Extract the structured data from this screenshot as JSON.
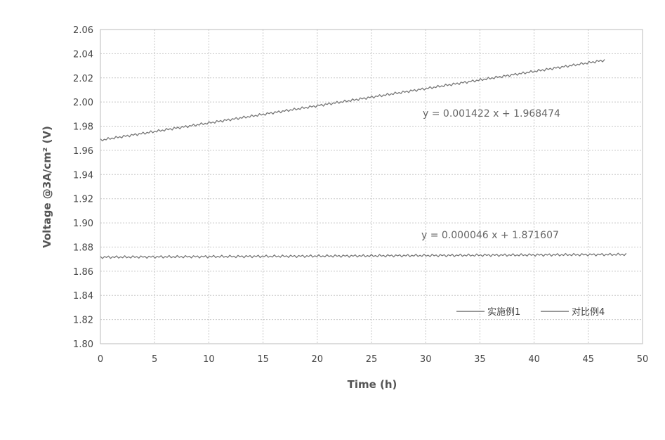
{
  "chart_data": {
    "type": "line",
    "xlabel": "Time (h)",
    "ylabel": "Voltage @3A/cm² (V)",
    "xlim": [
      0,
      50
    ],
    "ylim": [
      1.8,
      2.06
    ],
    "x_ticks": [
      0,
      5,
      10,
      15,
      20,
      25,
      30,
      35,
      40,
      45,
      50
    ],
    "y_ticks": [
      1.8,
      1.82,
      1.84,
      1.86,
      1.88,
      1.9,
      1.92,
      1.94,
      1.96,
      1.98,
      2.0,
      2.02,
      2.04,
      2.06
    ],
    "grid": true,
    "legend_position": "bottom-right",
    "series": [
      {
        "name": "实施例1",
        "color": "#777777",
        "x_start": 0,
        "x_end": 48.5,
        "slope": 4.6e-05,
        "intercept": 1.871607,
        "trend_label": "y = 0.000046 x + 1.871607"
      },
      {
        "name": "对比例4",
        "color": "#777777",
        "x_start": 0,
        "x_end": 46.5,
        "slope": 0.001422,
        "intercept": 1.968474,
        "trend_label": "y = 0.001422 x + 1.968474"
      }
    ]
  }
}
